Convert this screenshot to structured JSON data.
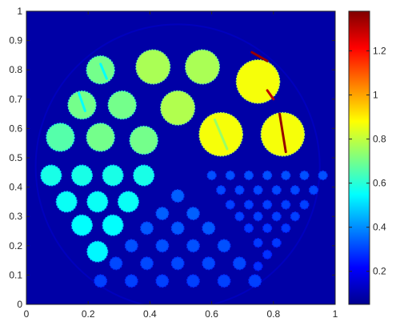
{
  "chart_data": {
    "type": "heatmap",
    "title": "",
    "xlabel": "",
    "ylabel": "",
    "xlim": [
      0,
      1
    ],
    "ylim": [
      0,
      1
    ],
    "x_ticks": [
      0,
      0.2,
      0.4,
      0.6,
      0.8,
      1
    ],
    "y_ticks": [
      0,
      0.1,
      0.2,
      0.3,
      0.4,
      0.5,
      0.6,
      0.7,
      0.8,
      0.9,
      1
    ],
    "x_tick_labels": [
      "0",
      "0.2",
      "0.4",
      "0.6",
      "0.8",
      "1"
    ],
    "y_tick_labels": [
      "0",
      "0.1",
      "0.2",
      "0.3",
      "0.4",
      "0.5",
      "0.6",
      "0.7",
      "0.8",
      "0.9",
      "1"
    ],
    "colormap": "jet",
    "colorbar_range": [
      0.05,
      1.38
    ],
    "colorbar_ticks": [
      0.2,
      0.4,
      0.6,
      0.8,
      1,
      1.2
    ],
    "colorbar_tick_labels": [
      "0.2",
      "0.4",
      "0.6",
      "0.8",
      "1",
      "1.2"
    ],
    "background_value": 0.1,
    "phantom_outline": {
      "center": [
        0.49,
        0.47
      ],
      "radius": 0.46,
      "value": 0.13
    },
    "streaks": [
      {
        "x1": 0.78,
        "y1": 0.83,
        "x2": 0.73,
        "y2": 0.86,
        "value": 1.35
      },
      {
        "x1": 0.8,
        "y1": 0.7,
        "x2": 0.78,
        "y2": 0.73,
        "value": 1.3
      },
      {
        "x1": 0.84,
        "y1": 0.52,
        "x2": 0.82,
        "y2": 0.65,
        "value": 1.35
      },
      {
        "x1": 0.65,
        "y1": 0.53,
        "x2": 0.61,
        "y2": 0.63,
        "value": 0.75
      },
      {
        "x1": 0.26,
        "y1": 0.77,
        "x2": 0.24,
        "y2": 0.82,
        "value": 0.55
      },
      {
        "x1": 0.19,
        "y1": 0.66,
        "x2": 0.17,
        "y2": 0.72,
        "value": 0.55
      }
    ],
    "large_rods": [
      {
        "x": 0.24,
        "y": 0.8,
        "r": 0.045,
        "value": 0.7
      },
      {
        "x": 0.41,
        "y": 0.81,
        "r": 0.055,
        "value": 0.77
      },
      {
        "x": 0.57,
        "y": 0.81,
        "r": 0.055,
        "value": 0.77
      },
      {
        "x": 0.75,
        "y": 0.76,
        "r": 0.07,
        "value": 0.87
      },
      {
        "x": 0.18,
        "y": 0.68,
        "r": 0.045,
        "value": 0.7
      },
      {
        "x": 0.31,
        "y": 0.68,
        "r": 0.045,
        "value": 0.7
      },
      {
        "x": 0.49,
        "y": 0.67,
        "r": 0.055,
        "value": 0.78
      },
      {
        "x": 0.63,
        "y": 0.58,
        "r": 0.07,
        "value": 0.87
      },
      {
        "x": 0.83,
        "y": 0.58,
        "r": 0.07,
        "value": 0.87
      },
      {
        "x": 0.11,
        "y": 0.57,
        "r": 0.045,
        "value": 0.66
      },
      {
        "x": 0.24,
        "y": 0.57,
        "r": 0.045,
        "value": 0.7
      },
      {
        "x": 0.38,
        "y": 0.56,
        "r": 0.045,
        "value": 0.7
      }
    ],
    "medium_rods": [
      {
        "x": 0.08,
        "y": 0.44,
        "r": 0.033,
        "value": 0.58
      },
      {
        "x": 0.18,
        "y": 0.44,
        "r": 0.033,
        "value": 0.58
      },
      {
        "x": 0.28,
        "y": 0.44,
        "r": 0.033,
        "value": 0.58
      },
      {
        "x": 0.38,
        "y": 0.44,
        "r": 0.033,
        "value": 0.58
      },
      {
        "x": 0.13,
        "y": 0.35,
        "r": 0.033,
        "value": 0.56
      },
      {
        "x": 0.23,
        "y": 0.35,
        "r": 0.033,
        "value": 0.56
      },
      {
        "x": 0.33,
        "y": 0.35,
        "r": 0.033,
        "value": 0.56
      },
      {
        "x": 0.18,
        "y": 0.27,
        "r": 0.033,
        "value": 0.55
      },
      {
        "x": 0.28,
        "y": 0.27,
        "r": 0.033,
        "value": 0.55
      },
      {
        "x": 0.23,
        "y": 0.18,
        "r": 0.033,
        "value": 0.54
      }
    ],
    "small_rods": [
      {
        "x": 0.49,
        "y": 0.37,
        "r": 0.02,
        "value": 0.34
      },
      {
        "x": 0.44,
        "y": 0.31,
        "r": 0.02,
        "value": 0.34
      },
      {
        "x": 0.54,
        "y": 0.31,
        "r": 0.02,
        "value": 0.34
      },
      {
        "x": 0.39,
        "y": 0.26,
        "r": 0.02,
        "value": 0.33
      },
      {
        "x": 0.49,
        "y": 0.26,
        "r": 0.02,
        "value": 0.33
      },
      {
        "x": 0.59,
        "y": 0.26,
        "r": 0.02,
        "value": 0.33
      },
      {
        "x": 0.34,
        "y": 0.2,
        "r": 0.02,
        "value": 0.32
      },
      {
        "x": 0.44,
        "y": 0.2,
        "r": 0.02,
        "value": 0.32
      },
      {
        "x": 0.54,
        "y": 0.2,
        "r": 0.02,
        "value": 0.32
      },
      {
        "x": 0.64,
        "y": 0.2,
        "r": 0.02,
        "value": 0.32
      },
      {
        "x": 0.29,
        "y": 0.14,
        "r": 0.02,
        "value": 0.31
      },
      {
        "x": 0.39,
        "y": 0.14,
        "r": 0.02,
        "value": 0.31
      },
      {
        "x": 0.49,
        "y": 0.14,
        "r": 0.02,
        "value": 0.31
      },
      {
        "x": 0.59,
        "y": 0.14,
        "r": 0.02,
        "value": 0.31
      },
      {
        "x": 0.69,
        "y": 0.14,
        "r": 0.02,
        "value": 0.31
      },
      {
        "x": 0.24,
        "y": 0.08,
        "r": 0.02,
        "value": 0.3
      },
      {
        "x": 0.34,
        "y": 0.08,
        "r": 0.02,
        "value": 0.3
      },
      {
        "x": 0.44,
        "y": 0.08,
        "r": 0.02,
        "value": 0.3
      },
      {
        "x": 0.54,
        "y": 0.08,
        "r": 0.02,
        "value": 0.3
      },
      {
        "x": 0.64,
        "y": 0.08,
        "r": 0.02,
        "value": 0.3
      },
      {
        "x": 0.74,
        "y": 0.08,
        "r": 0.02,
        "value": 0.3
      }
    ],
    "tiny_rods": [
      {
        "x": 0.6,
        "y": 0.44,
        "r": 0.014,
        "value": 0.32
      },
      {
        "x": 0.66,
        "y": 0.44,
        "r": 0.014,
        "value": 0.32
      },
      {
        "x": 0.72,
        "y": 0.44,
        "r": 0.014,
        "value": 0.32
      },
      {
        "x": 0.78,
        "y": 0.44,
        "r": 0.014,
        "value": 0.32
      },
      {
        "x": 0.84,
        "y": 0.44,
        "r": 0.014,
        "value": 0.32
      },
      {
        "x": 0.9,
        "y": 0.44,
        "r": 0.014,
        "value": 0.32
      },
      {
        "x": 0.96,
        "y": 0.44,
        "r": 0.014,
        "value": 0.32
      },
      {
        "x": 0.63,
        "y": 0.39,
        "r": 0.014,
        "value": 0.31
      },
      {
        "x": 0.69,
        "y": 0.39,
        "r": 0.014,
        "value": 0.31
      },
      {
        "x": 0.75,
        "y": 0.39,
        "r": 0.014,
        "value": 0.31
      },
      {
        "x": 0.81,
        "y": 0.39,
        "r": 0.014,
        "value": 0.31
      },
      {
        "x": 0.87,
        "y": 0.39,
        "r": 0.014,
        "value": 0.31
      },
      {
        "x": 0.93,
        "y": 0.39,
        "r": 0.014,
        "value": 0.31
      },
      {
        "x": 0.66,
        "y": 0.34,
        "r": 0.014,
        "value": 0.3
      },
      {
        "x": 0.72,
        "y": 0.34,
        "r": 0.014,
        "value": 0.3
      },
      {
        "x": 0.78,
        "y": 0.34,
        "r": 0.014,
        "value": 0.3
      },
      {
        "x": 0.84,
        "y": 0.34,
        "r": 0.014,
        "value": 0.3
      },
      {
        "x": 0.9,
        "y": 0.34,
        "r": 0.014,
        "value": 0.3
      },
      {
        "x": 0.69,
        "y": 0.3,
        "r": 0.014,
        "value": 0.3
      },
      {
        "x": 0.75,
        "y": 0.3,
        "r": 0.014,
        "value": 0.3
      },
      {
        "x": 0.81,
        "y": 0.3,
        "r": 0.014,
        "value": 0.3
      },
      {
        "x": 0.87,
        "y": 0.3,
        "r": 0.014,
        "value": 0.3
      },
      {
        "x": 0.72,
        "y": 0.26,
        "r": 0.014,
        "value": 0.29
      },
      {
        "x": 0.78,
        "y": 0.26,
        "r": 0.014,
        "value": 0.29
      },
      {
        "x": 0.84,
        "y": 0.26,
        "r": 0.014,
        "value": 0.29
      },
      {
        "x": 0.75,
        "y": 0.21,
        "r": 0.014,
        "value": 0.29
      },
      {
        "x": 0.81,
        "y": 0.21,
        "r": 0.014,
        "value": 0.29
      },
      {
        "x": 0.78,
        "y": 0.17,
        "r": 0.014,
        "value": 0.28
      },
      {
        "x": 0.75,
        "y": 0.13,
        "r": 0.014,
        "value": 0.28
      }
    ]
  }
}
